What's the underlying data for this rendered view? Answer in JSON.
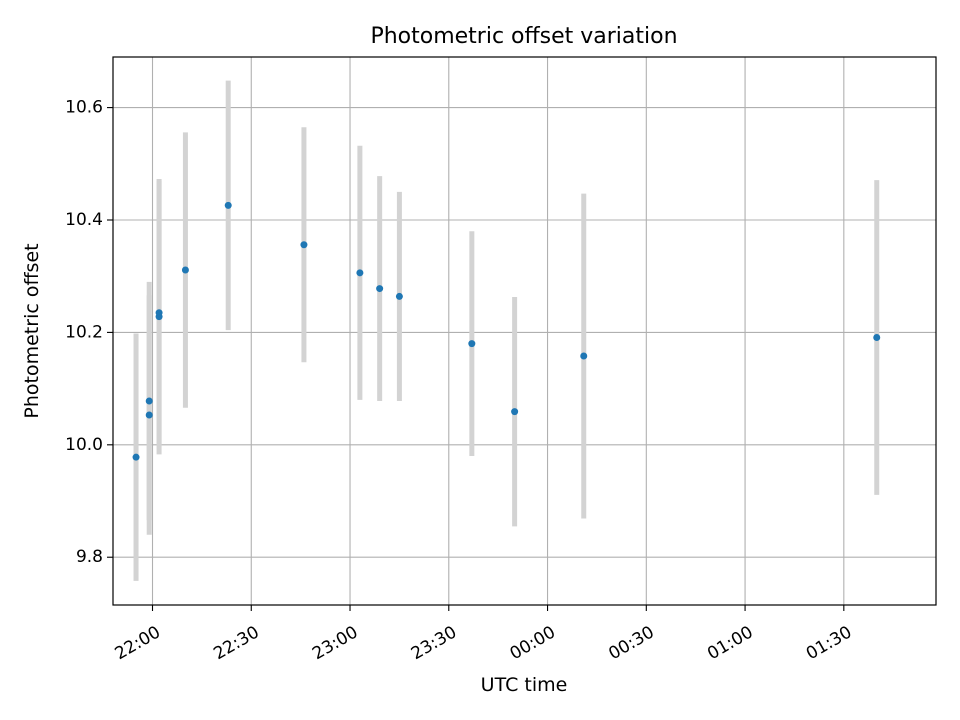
{
  "chart_data": {
    "type": "scatter",
    "title": "Photometric offset variation",
    "xlabel": "UTC time",
    "ylabel": "Photometric offset",
    "x_axis": {
      "kind": "time",
      "range": [
        "21:48",
        "01:58"
      ],
      "ticks": [
        "22:00",
        "22:30",
        "23:00",
        "23:30",
        "00:00",
        "00:30",
        "01:00",
        "01:30"
      ],
      "tick_rotation_deg": 30
    },
    "y_axis": {
      "range": [
        9.715,
        10.69
      ],
      "ticks": [
        9.8,
        10.0,
        10.2,
        10.4,
        10.6
      ],
      "tick_labels": [
        "9.8",
        "10.0",
        "10.2",
        "10.4",
        "10.6"
      ]
    },
    "grid": true,
    "legend": "none",
    "colors": {
      "point": "#1f77b4",
      "errorbar": "#d3d3d3",
      "grid": "#b0b0b0"
    },
    "series": [
      {
        "points": [
          {
            "x": "21:55",
            "y": 9.978,
            "y_err": 0.22
          },
          {
            "x": "21:59",
            "y": 10.053,
            "y_err": 0.213
          },
          {
            "x": "21:59",
            "y": 10.078,
            "y_err": 0.212
          },
          {
            "x": "22:02",
            "y": 10.228,
            "y_err": 0.245
          },
          {
            "x": "22:02",
            "y": 10.235,
            "y_err": 0.235
          },
          {
            "x": "22:10",
            "y": 10.311,
            "y_err": 0.245
          },
          {
            "x": "22:23",
            "y": 10.426,
            "y_err": 0.222
          },
          {
            "x": "22:46",
            "y": 10.356,
            "y_err": 0.209
          },
          {
            "x": "23:03",
            "y": 10.306,
            "y_err": 0.226
          },
          {
            "x": "23:09",
            "y": 10.278,
            "y_err": 0.2
          },
          {
            "x": "23:15",
            "y": 10.264,
            "y_err": 0.186
          },
          {
            "x": "23:37",
            "y": 10.18,
            "y_err": 0.2
          },
          {
            "x": "23:50",
            "y": 10.059,
            "y_err": 0.204
          },
          {
            "x": "00:11",
            "y": 10.158,
            "y_err": 0.289
          },
          {
            "x": "01:40",
            "y": 10.191,
            "y_err": 0.28
          }
        ]
      }
    ]
  }
}
